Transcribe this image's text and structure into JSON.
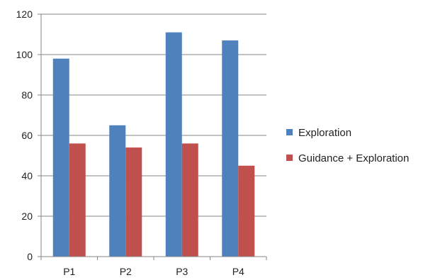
{
  "chart_data": {
    "type": "bar",
    "categories": [
      "P1",
      "P2",
      "P3",
      "P4"
    ],
    "series": [
      {
        "name": "Exploration",
        "values": [
          98,
          65,
          111,
          107
        ],
        "color": "#4F81BD"
      },
      {
        "name": "Guidance + Exploration",
        "values": [
          56,
          54,
          56,
          45
        ],
        "color": "#C0504D"
      }
    ],
    "title": "",
    "xlabel": "",
    "ylabel": "",
    "ylim": [
      0,
      120
    ],
    "yticks": [
      0,
      20,
      40,
      60,
      80,
      100,
      120
    ],
    "grid": true,
    "legend_position": "right"
  }
}
